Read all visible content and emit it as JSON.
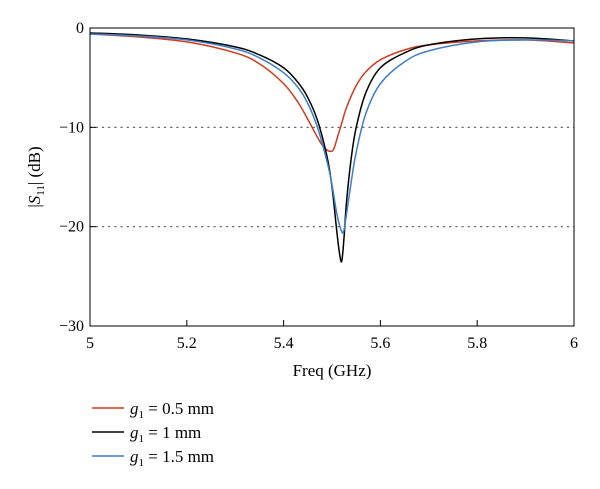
{
  "chart_data": {
    "type": "line",
    "xlabel": "Freq (GHz)",
    "ylabel": {
      "prefix": "|",
      "sym": "S",
      "sub": "11",
      "suffix": "| (dB)"
    },
    "xlim": [
      5,
      6
    ],
    "ylim": [
      -30,
      0
    ],
    "x_ticks": [
      5,
      5.2,
      5.4,
      5.6,
      5.8,
      6
    ],
    "y_ticks": [
      0,
      -10,
      -20,
      -30
    ],
    "x_tick_labels": [
      "5",
      "5.2",
      "5.4",
      "5.6",
      "5.8",
      "6"
    ],
    "y_tick_labels": [
      "0",
      "−10",
      "−20",
      "−30"
    ],
    "reference_lines_y": [
      -10,
      -20
    ],
    "legend_position": "bottom-left (below plot)",
    "series": [
      {
        "name": {
          "sym": "g",
          "sub": "1",
          "rest": " = 0.5 mm"
        },
        "color": "#d03a1e",
        "x": [
          5.0,
          5.1,
          5.2,
          5.3,
          5.35,
          5.4,
          5.43,
          5.45,
          5.47,
          5.48,
          5.49,
          5.5,
          5.505,
          5.51,
          5.52,
          5.53,
          5.55,
          5.57,
          5.6,
          5.65,
          5.7,
          5.8,
          5.9,
          6.0
        ],
        "y": [
          -0.6,
          -0.9,
          -1.4,
          -2.5,
          -3.6,
          -5.6,
          -7.5,
          -9.2,
          -11.0,
          -11.8,
          -12.3,
          -12.4,
          -12.0,
          -11.2,
          -9.6,
          -8.0,
          -5.8,
          -4.4,
          -3.2,
          -2.2,
          -1.7,
          -1.3,
          -1.2,
          -1.5
        ]
      },
      {
        "name": {
          "sym": "g",
          "sub": "1",
          "rest": " = 1 mm"
        },
        "color": "#000000",
        "x": [
          5.0,
          5.1,
          5.2,
          5.3,
          5.35,
          5.4,
          5.43,
          5.45,
          5.47,
          5.49,
          5.5,
          5.51,
          5.515,
          5.52,
          5.525,
          5.53,
          5.54,
          5.55,
          5.57,
          5.6,
          5.65,
          5.7,
          5.8,
          5.9,
          6.0
        ],
        "y": [
          -0.5,
          -0.7,
          -1.1,
          -1.9,
          -2.7,
          -4.0,
          -5.5,
          -7.0,
          -9.3,
          -13.0,
          -16.0,
          -20.5,
          -22.5,
          -23.5,
          -21.0,
          -17.5,
          -13.0,
          -10.0,
          -6.5,
          -4.0,
          -2.5,
          -1.7,
          -1.1,
          -1.0,
          -1.3
        ]
      },
      {
        "name": {
          "sym": "g",
          "sub": "1",
          "rest": " = 1.5 mm"
        },
        "color": "#3d7ec7",
        "x": [
          5.0,
          5.1,
          5.2,
          5.3,
          5.35,
          5.4,
          5.43,
          5.45,
          5.47,
          5.49,
          5.5,
          5.51,
          5.52,
          5.525,
          5.53,
          5.54,
          5.55,
          5.57,
          5.6,
          5.65,
          5.7,
          5.8,
          5.9,
          6.0
        ],
        "y": [
          -0.6,
          -0.8,
          -1.2,
          -2.1,
          -3.0,
          -4.5,
          -6.0,
          -7.6,
          -10.0,
          -13.5,
          -15.8,
          -18.7,
          -20.5,
          -20.3,
          -18.7,
          -15.4,
          -12.5,
          -8.6,
          -5.6,
          -3.4,
          -2.3,
          -1.4,
          -1.2,
          -1.3
        ]
      }
    ]
  }
}
